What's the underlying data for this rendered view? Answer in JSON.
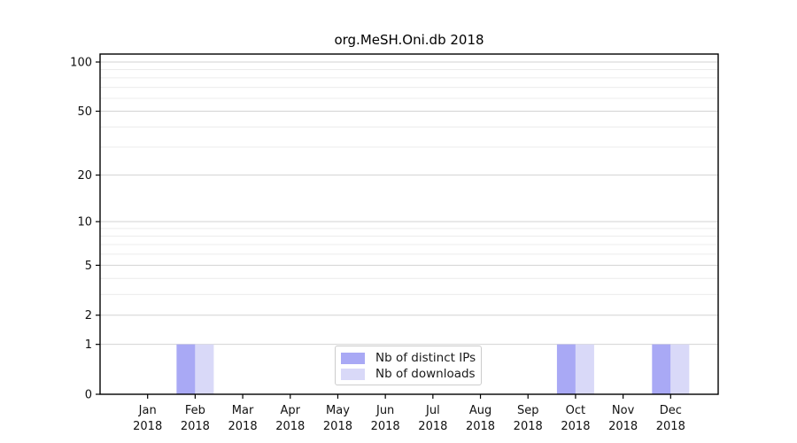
{
  "chart_data": {
    "type": "bar",
    "title": "org.MeSH.Oni.db 2018",
    "categories": [
      "Jan 2018",
      "Feb 2018",
      "Mar 2018",
      "Apr 2018",
      "May 2018",
      "Jun 2018",
      "Jul 2018",
      "Aug 2018",
      "Sep 2018",
      "Oct 2018",
      "Nov 2018",
      "Dec 2018"
    ],
    "series": [
      {
        "name": "Nb of distinct IPs",
        "color": "#a9a9f5",
        "values": [
          0,
          1,
          0,
          0,
          0,
          0,
          0,
          0,
          0,
          1,
          0,
          1
        ]
      },
      {
        "name": "Nb of downloads",
        "color": "#d9d9f8",
        "values": [
          0,
          1,
          0,
          0,
          0,
          0,
          0,
          0,
          0,
          1,
          0,
          1
        ]
      }
    ],
    "xlabel": "",
    "ylabel": "",
    "yscale": "log1p",
    "yticks": [
      0,
      1,
      2,
      5,
      10,
      20,
      50,
      100
    ],
    "minor_gridline_values": [
      3,
      4,
      6,
      7,
      8,
      9,
      30,
      40,
      60,
      70,
      80,
      90
    ],
    "ylim": [
      0,
      112
    ],
    "grid": "horizontal",
    "legend_position": "inside-bottom-center",
    "colors": {
      "axis": "#000000",
      "major_grid": "#d3d3d3",
      "minor_grid": "#ececec",
      "tick_label": "#111111",
      "legend_border": "#cccccc"
    }
  }
}
